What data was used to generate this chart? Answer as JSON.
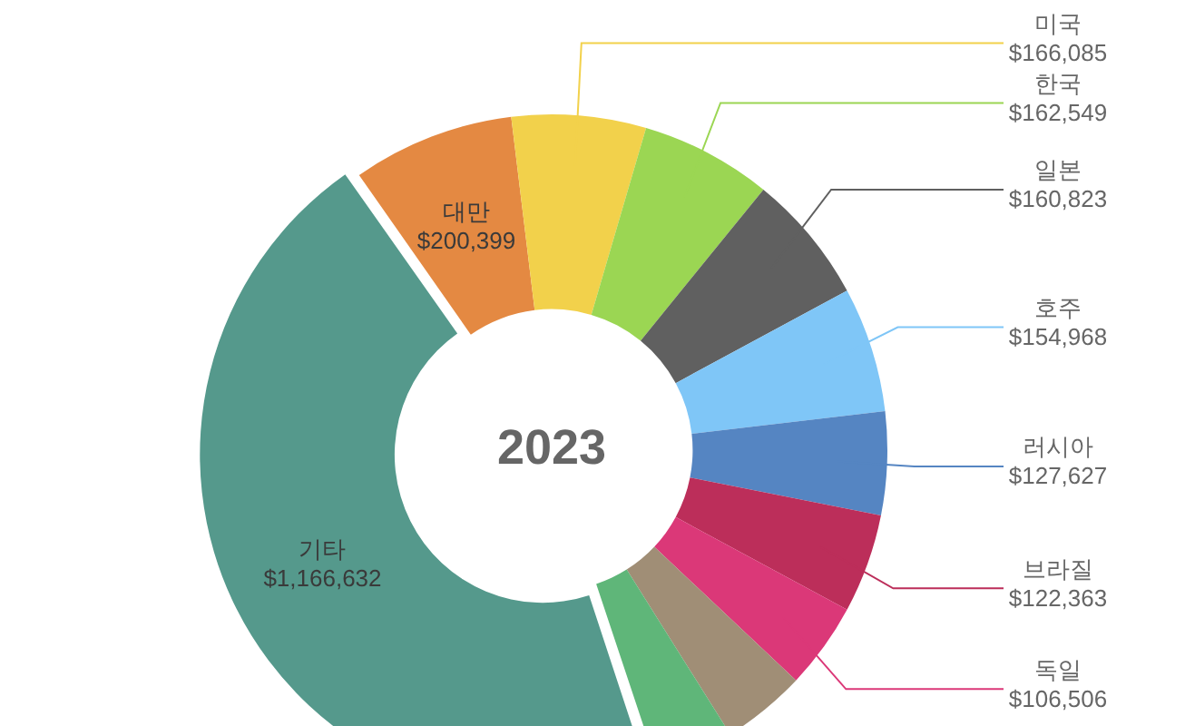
{
  "chart_data": {
    "type": "donut",
    "title": "2023",
    "categories": [
      "대만",
      "미국",
      "한국",
      "일본",
      "호주",
      "러시아",
      "브라질",
      "독일",
      null,
      null,
      "기타"
    ],
    "values": [
      200399,
      166085,
      162549,
      160823,
      154968,
      127627,
      122363,
      106506,
      104000,
      98000,
      1166632
    ],
    "colors": [
      "#e48942",
      "#f2d14b",
      "#9bd653",
      "#606060",
      "#7fc6f7",
      "#5585c2",
      "#bc2e5a",
      "#db3878",
      "#a08e76",
      "#5fb679",
      "#55998c"
    ],
    "value_labels": [
      "$200,399",
      "$166,085",
      "$162,549",
      "$160,823",
      "$154,968",
      "$127,627",
      "$122,363",
      "$106,506",
      null,
      null,
      "$1,166,632"
    ],
    "legend": false
  }
}
